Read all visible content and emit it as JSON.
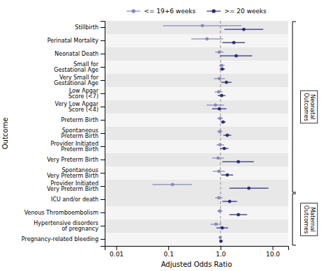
{
  "chart_data": {
    "type": "forest",
    "xlabel": "Adjusted Odds Ratio",
    "ylabel": "Outcome",
    "log": "x",
    "grid": false,
    "legend": "top",
    "xlim": [
      0.006,
      20.0
    ],
    "xticks": [
      0.01,
      0.1,
      {
        "value": 1.0,
        "label": "1.0"
      },
      {
        "value": 10.0,
        "label": "10.0"
      }
    ],
    "reference_line": 1.0,
    "categories": [
      "Stillbirth",
      "Perinatal Mortality",
      "Neonatal Death",
      "Small for\nGestational Age",
      "Very Small for\nGestational Age",
      "Low Apgar\nScore (<7)",
      "Very Low Apgar\nScore (<4)",
      "Preterm Birth",
      "Spontaneous\nPreterm Birth",
      "Provider Initiated\nPreterm Birth",
      "Very Preterm Birth",
      "Spontaneous\nVery Preterm Birth",
      "Provider Initiated\nVery Preterm Birth",
      "ICU and/or death",
      "Venous Thromboembolism",
      "Hypertensive disorders\nof pregnancy",
      "Pregnancy-related bleeding"
    ],
    "groups": [
      {
        "label": "Neonatal\nOutcomes",
        "size": 13
      },
      {
        "label": "Maternal\nOutcomes",
        "size": 4
      }
    ],
    "series": [
      {
        "name": "<= 19+6 weeks",
        "color": "#8888bb",
        "marker": "circle",
        "values": [
          0.45,
          0.55,
          0.95,
          1.05,
          0.95,
          0.92,
          0.8,
          0.98,
          0.97,
          0.98,
          0.9,
          0.93,
          0.12,
          0.93,
          0.97,
          0.82,
          0.99
        ],
        "ci_lo": [
          0.08,
          0.28,
          0.8,
          0.95,
          0.75,
          0.78,
          0.55,
          0.88,
          0.88,
          0.85,
          0.7,
          0.72,
          0.05,
          0.8,
          0.88,
          0.65,
          0.96
        ],
        "ci_hi": [
          2.5,
          1.1,
          1.12,
          1.18,
          1.2,
          1.08,
          1.15,
          1.1,
          1.08,
          1.15,
          1.16,
          1.2,
          0.28,
          1.08,
          1.08,
          1.03,
          1.02
        ]
      },
      {
        "name": ">= 20 weeks",
        "color": "#2e2f7a",
        "marker": "circle",
        "values": [
          2.8,
          1.8,
          2.0,
          1.08,
          1.3,
          1.05,
          0.95,
          1.12,
          1.35,
          1.18,
          2.2,
          1.35,
          3.5,
          1.5,
          2.2,
          1.08,
          1.02
        ],
        "ci_lo": [
          1.2,
          1.1,
          1.0,
          0.98,
          1.05,
          0.9,
          0.7,
          1.02,
          1.15,
          1.0,
          1.1,
          1.05,
          1.5,
          1.1,
          1.5,
          0.85,
          0.96
        ],
        "ci_hi": [
          6.5,
          2.9,
          4.0,
          1.2,
          1.6,
          1.22,
          1.28,
          1.24,
          1.58,
          1.4,
          4.3,
          1.72,
          8.2,
          2.05,
          3.2,
          1.38,
          1.09
        ]
      }
    ]
  }
}
